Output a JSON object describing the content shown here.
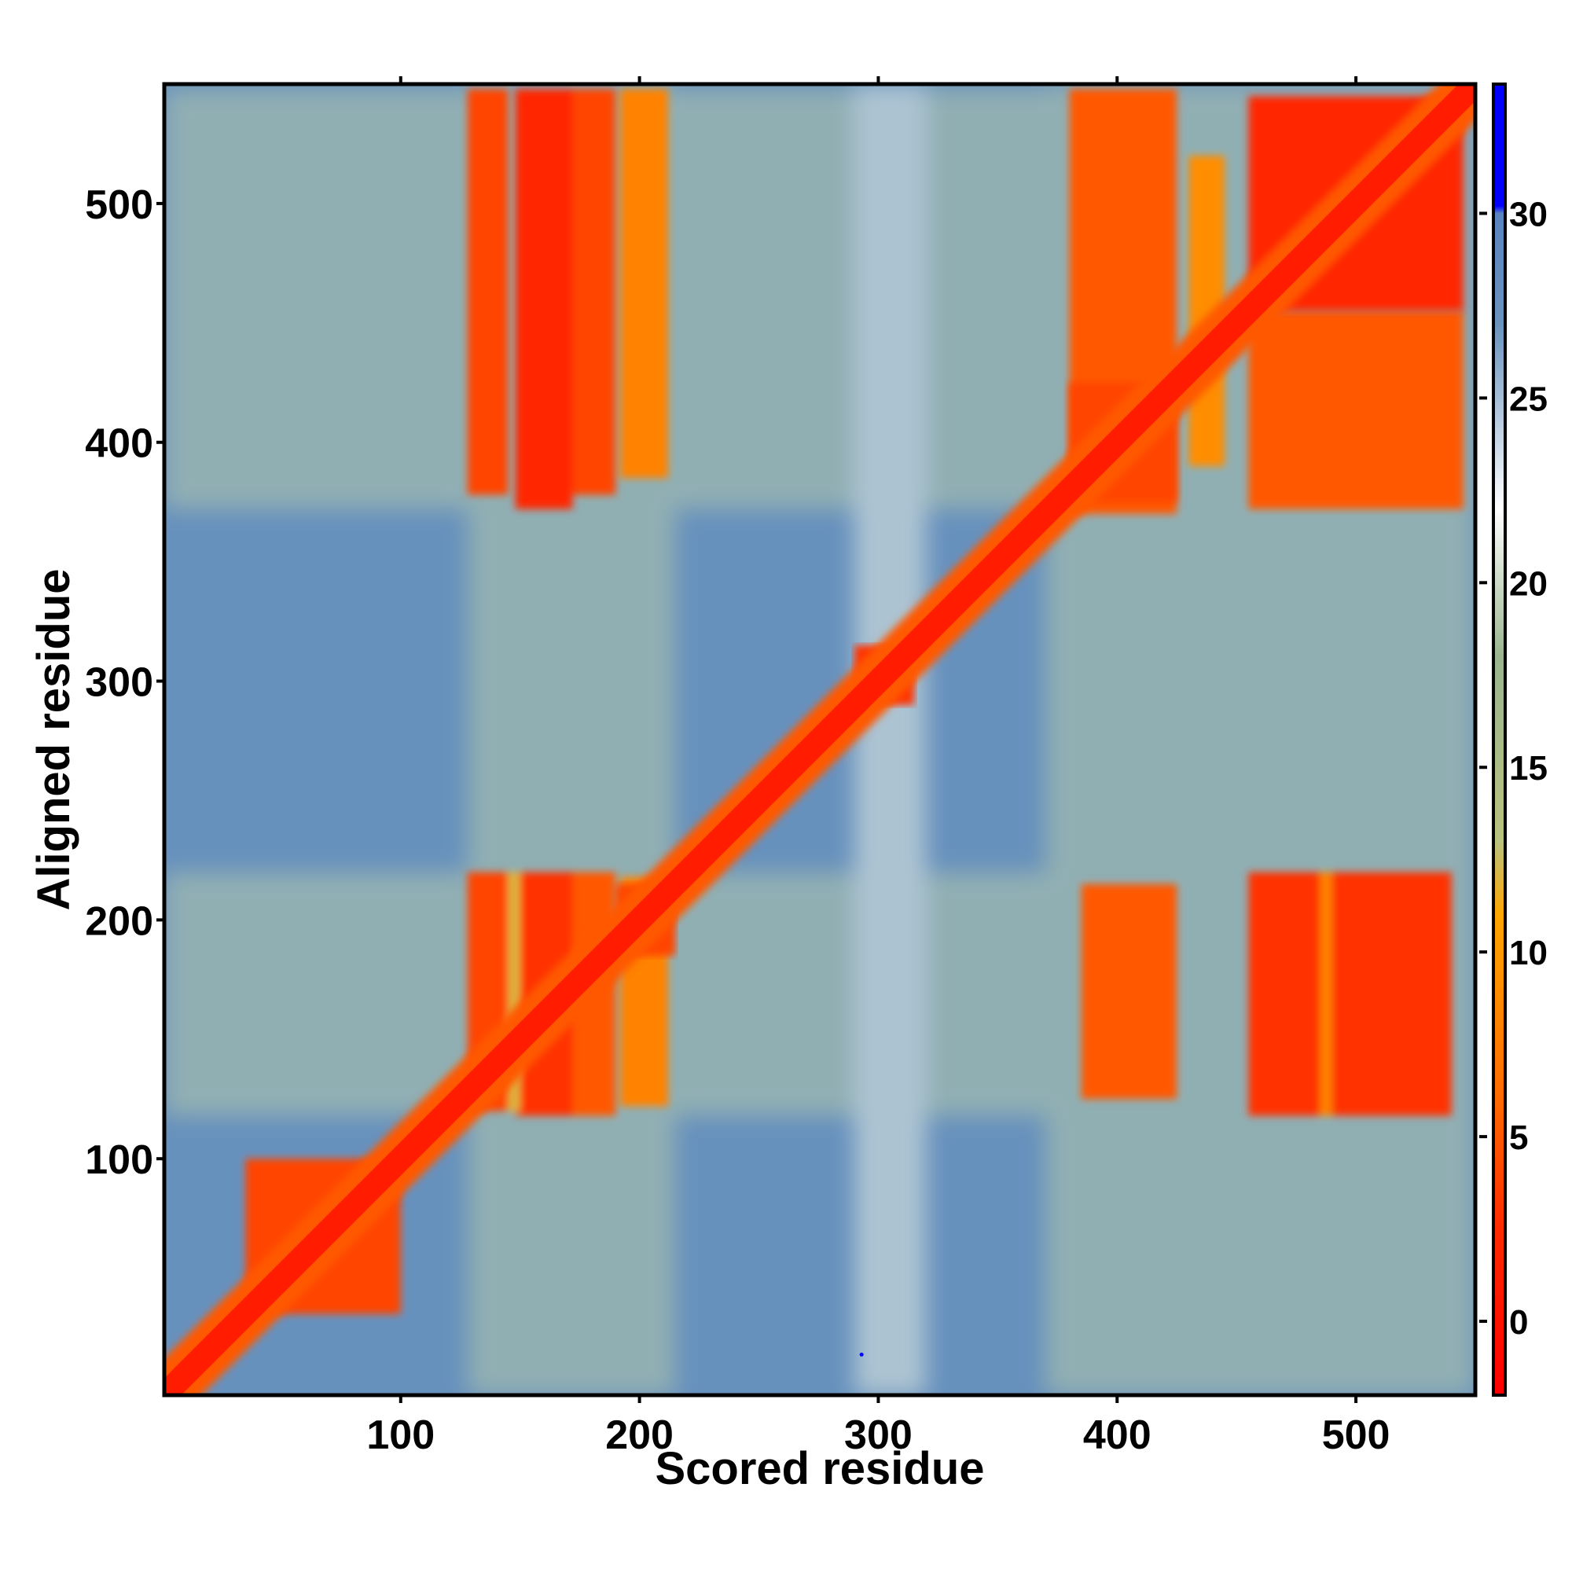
{
  "chart_data": {
    "type": "heatmap",
    "title": "",
    "xlabel": "Scored residue",
    "ylabel": "Aligned residue",
    "xlim": [
      1,
      550
    ],
    "ylim": [
      1,
      550
    ],
    "x_ticks": [
      100,
      200,
      300,
      400,
      500
    ],
    "y_ticks": [
      100,
      200,
      300,
      400,
      500
    ],
    "x_tick_labels": [
      "100",
      "200",
      "300",
      "400",
      "500"
    ],
    "y_tick_labels": [
      "100",
      "200",
      "300",
      "400",
      "500"
    ],
    "colorbar": {
      "range": [
        -2,
        33.5
      ],
      "ticks": [
        0,
        5,
        10,
        15,
        20,
        25,
        30
      ],
      "tick_labels": [
        "0",
        "5",
        "10",
        "15",
        "20",
        "25",
        "30"
      ],
      "stops": [
        {
          "value": -2,
          "color": "#ff0000"
        },
        {
          "value": 2.5,
          "color": "#ff2a00"
        },
        {
          "value": 6,
          "color": "#ff6a00"
        },
        {
          "value": 11,
          "color": "#ffa500"
        },
        {
          "value": 13,
          "color": "#b9c27e"
        },
        {
          "value": 18,
          "color": "#9ab58f"
        },
        {
          "value": 22,
          "color": "#ffffff"
        },
        {
          "value": 27,
          "color": "#6a93bd"
        },
        {
          "value": 30,
          "color": "#5a84bf"
        },
        {
          "value": 30.2,
          "color": "#0000ff"
        },
        {
          "value": 33.5,
          "color": "#0000ff"
        }
      ]
    },
    "background_value": 27.5,
    "diagonal": {
      "width_residues": 10,
      "value": 1
    },
    "domains": [
      {
        "x": [
          35,
          100
        ],
        "y": [
          35,
          100
        ],
        "value": 4
      },
      {
        "x": [
          290,
          315
        ],
        "y": [
          290,
          315
        ],
        "value": 3
      },
      {
        "x": [
          380,
          425
        ],
        "y": [
          375,
          425
        ],
        "value": 4
      },
      {
        "x": [
          455,
          545
        ],
        "y": [
          455,
          545
        ],
        "value": 2
      },
      {
        "x": [
          190,
          215
        ],
        "y": [
          185,
          215
        ],
        "value": 4
      }
    ],
    "blocks": [
      {
        "x": [
          128,
          145
        ],
        "y": [
          120,
          220
        ],
        "value": 4
      },
      {
        "x": [
          148,
          172
        ],
        "y": [
          118,
          220
        ],
        "value": 3
      },
      {
        "x": [
          172,
          190
        ],
        "y": [
          118,
          220
        ],
        "value": 5
      },
      {
        "x": [
          192,
          212
        ],
        "y": [
          122,
          218
        ],
        "value": 8
      },
      {
        "x": [
          385,
          425
        ],
        "y": [
          125,
          215
        ],
        "value": 5
      },
      {
        "x": [
          455,
          485
        ],
        "y": [
          118,
          220
        ],
        "value": 3
      },
      {
        "x": [
          490,
          540
        ],
        "y": [
          118,
          220
        ],
        "value": 3
      },
      {
        "x": [
          128,
          145
        ],
        "y": [
          378,
          548
        ],
        "value": 4
      },
      {
        "x": [
          148,
          172
        ],
        "y": [
          372,
          548
        ],
        "value": 2
      },
      {
        "x": [
          172,
          190
        ],
        "y": [
          378,
          548
        ],
        "value": 4
      },
      {
        "x": [
          192,
          212
        ],
        "y": [
          385,
          548
        ],
        "value": 8
      },
      {
        "x": [
          380,
          425
        ],
        "y": [
          370,
          548
        ],
        "value": 5
      },
      {
        "x": [
          430,
          445
        ],
        "y": [
          390,
          520
        ],
        "value": 9
      },
      {
        "x": [
          455,
          545
        ],
        "y": [
          372,
          455
        ],
        "value": 5
      },
      {
        "x": [
          145,
          150
        ],
        "y": [
          120,
          220
        ],
        "value": 12
      },
      {
        "x": [
          485,
          490
        ],
        "y": [
          118,
          220
        ],
        "value": 8
      }
    ],
    "bands": [
      {
        "x": [
          128,
          215
        ],
        "y": [
          1,
          550
        ],
        "value": 19
      },
      {
        "x": [
          370,
          460
        ],
        "y": [
          1,
          550
        ],
        "value": 19
      },
      {
        "x": [
          1,
          550
        ],
        "y": [
          118,
          220
        ],
        "value": 19
      },
      {
        "x": [
          1,
          550
        ],
        "y": [
          372,
          548
        ],
        "value": 19
      },
      {
        "x": [
          455,
          550
        ],
        "y": [
          1,
          550
        ],
        "value": 19
      },
      {
        "x": [
          290,
          320
        ],
        "y": [
          1,
          550
        ],
        "value": 21
      }
    ],
    "marker": {
      "x": 293,
      "y": 18,
      "value": 33
    }
  }
}
